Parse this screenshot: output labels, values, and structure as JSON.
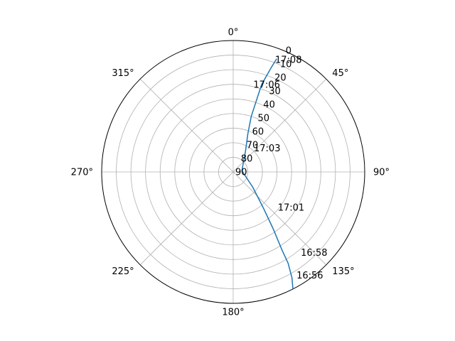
{
  "chart_data": {
    "type": "line",
    "projection": "polar",
    "theta_zero_location": "N",
    "theta_direction": "clockwise",
    "theta_tick_labels": [
      "0°",
      "45°",
      "90°",
      "135°",
      "180°",
      "225°",
      "270°",
      "315°"
    ],
    "theta_ticks_deg": [
      0,
      45,
      90,
      135,
      180,
      225,
      270,
      315
    ],
    "r_axis_label_meaning": "elevation (90 at center, 0 at edge)",
    "r_tick_labels": [
      "0",
      "10",
      "20",
      "30",
      "40",
      "50",
      "60",
      "70",
      "80",
      "90"
    ],
    "r_ticks": [
      0,
      10,
      20,
      30,
      40,
      50,
      60,
      70,
      80,
      90
    ],
    "rlim": [
      90,
      0
    ],
    "grid": true,
    "series": [
      {
        "color": "#1f77b4",
        "points": [
          {
            "az_deg": 153,
            "el": 0
          },
          {
            "az_deg": 151,
            "el": 7
          },
          {
            "az_deg": 149,
            "el": 17
          },
          {
            "az_deg": 148,
            "el": 27
          },
          {
            "az_deg": 145,
            "el": 42
          },
          {
            "az_deg": 140,
            "el": 58
          },
          {
            "az_deg": 128,
            "el": 73
          },
          {
            "az_deg": 82,
            "el": 84
          },
          {
            "az_deg": 30,
            "el": 73
          },
          {
            "az_deg": 21,
            "el": 62
          },
          {
            "az_deg": 18,
            "el": 50
          },
          {
            "az_deg": 18,
            "el": 40
          },
          {
            "az_deg": 18,
            "el": 27
          },
          {
            "az_deg": 20,
            "el": 14
          },
          {
            "az_deg": 21,
            "el": 7
          }
        ]
      }
    ],
    "time_annotations": [
      {
        "text": "17:08",
        "az_deg": 20.5,
        "el": 8
      },
      {
        "text": "17:06",
        "az_deg": 13,
        "el": 28.5
      },
      {
        "text": "17:03",
        "az_deg": 41,
        "el": 68.5
      },
      {
        "text": "17:01",
        "az_deg": 128.5,
        "el": 51
      },
      {
        "text": "16:58",
        "az_deg": 140,
        "el": 18
      },
      {
        "text": "16:56",
        "az_deg": 148.5,
        "el": 7
      }
    ]
  }
}
